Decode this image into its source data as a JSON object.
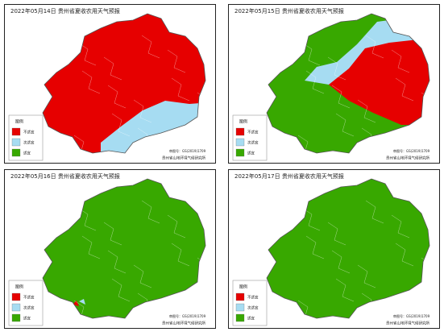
{
  "panels": [
    {
      "title": "2022年05月14日 贵州省夏收农用天气预报"
    },
    {
      "title": "2022年05月15日 贵州省夏收农用天气预报"
    },
    {
      "title": "2022年05月16日 贵州省夏收农用天气预报"
    },
    {
      "title": "2022年05月17日 贵州省夏收农用天气预报"
    }
  ],
  "legend": {
    "title": "图例",
    "items": [
      {
        "label": "不适宜",
        "color": "#e60000"
      },
      {
        "label": "次适宜",
        "color": "#a6dcf2"
      },
      {
        "label": "适宜",
        "color": "#38a800"
      }
    ]
  },
  "footer": {
    "approval": "审图号：GS(2019)1709",
    "institute": "贵州省山地环境气候研究所"
  }
}
